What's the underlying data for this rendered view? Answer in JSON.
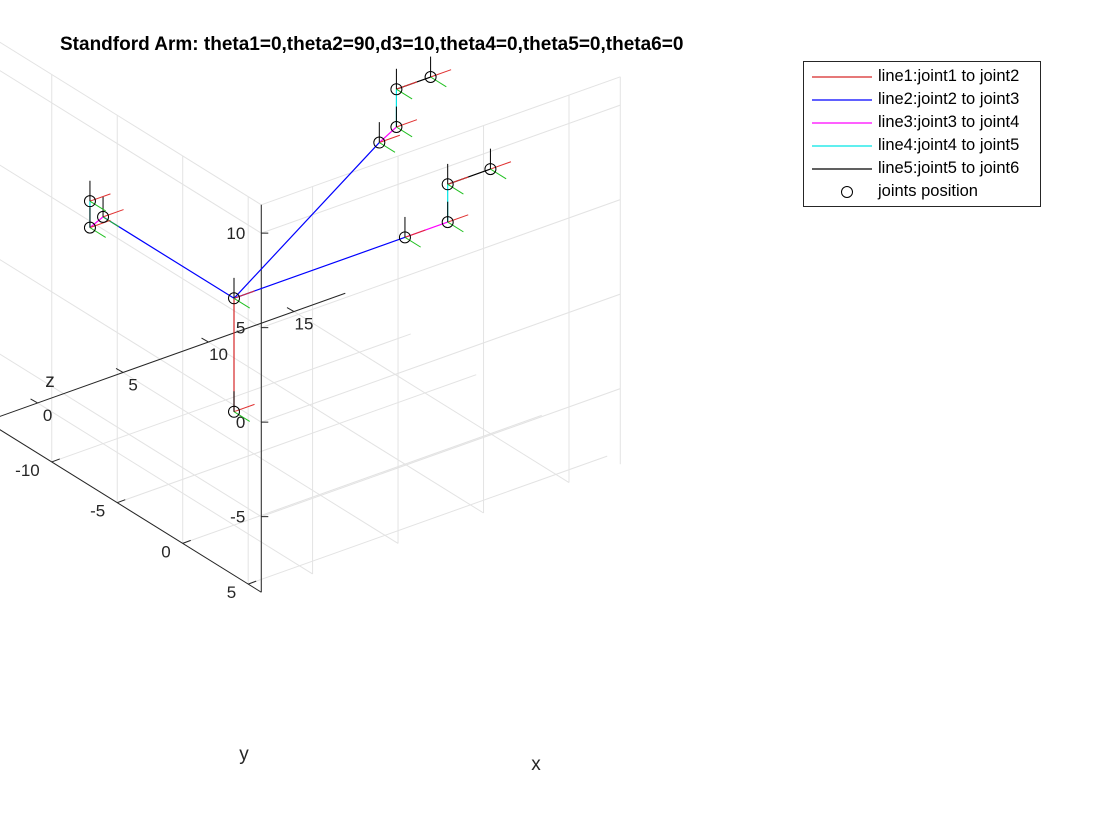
{
  "figure": {
    "title": "Standford Arm: theta1=0,theta2=90,d3=10,theta4=0,theta5=0,theta6=0"
  },
  "chart_data": {
    "type": "line3d",
    "title": "Standford Arm: theta1=0,theta2=90,d3=10,theta4=0,theta5=0,theta6=0",
    "xlabel": "x",
    "ylabel": "y",
    "zlabel": "z",
    "xlim": [
      -3,
      18
    ],
    "ylim": [
      -15,
      6
    ],
    "zlim": [
      -9,
      11.5
    ],
    "x_ticks": [
      0,
      5,
      10,
      15
    ],
    "y_ticks": [
      -10,
      -5,
      0,
      5
    ],
    "z_ticks": [
      -5,
      0,
      5,
      10
    ],
    "grid": true,
    "legend_location": "outside-top-right",
    "series": [
      {
        "name": "line1:joint1 to joint2",
        "color": "#d62728",
        "segments": [
          [
            [
              0,
              0,
              -3
            ],
            [
              0,
              0,
              3
            ]
          ]
        ]
      },
      {
        "name": "line2:joint2 to joint3",
        "color": "#0000ff",
        "segments": [
          [
            [
              0,
              0,
              3
            ],
            [
              0,
              -10,
              3
            ]
          ],
          [
            [
              0,
              0,
              3
            ],
            [
              10,
              0,
              3
            ]
          ],
          [
            [
              0,
              0,
              3
            ],
            [
              8.5,
              0,
              8.5
            ]
          ]
        ]
      },
      {
        "name": "line3:joint3 to joint4",
        "color": "#ff00ff",
        "segments": [
          [
            [
              0,
              -10,
              3
            ],
            [
              0,
              -11,
              2
            ]
          ],
          [
            [
              10,
              0,
              3
            ],
            [
              12.5,
              0,
              3
            ]
          ],
          [
            [
              8.5,
              0,
              8.5
            ],
            [
              9.5,
              0,
              9
            ]
          ]
        ]
      },
      {
        "name": "line4:joint4 to joint5",
        "color": "#00e5e5",
        "segments": [
          [
            [
              0,
              -11,
              2
            ],
            [
              0,
              -11,
              3.4
            ]
          ],
          [
            [
              12.5,
              0,
              3
            ],
            [
              12.5,
              0,
              5
            ]
          ],
          [
            [
              9.5,
              0,
              9
            ],
            [
              9.5,
              0,
              11
            ]
          ]
        ]
      },
      {
        "name": "line5:joint5 to joint6",
        "color": "#000000",
        "segments": [
          [
            [
              0,
              -11,
              3.4
            ],
            [
              0,
              -11,
              3.4
            ]
          ],
          [
            [
              12.5,
              0,
              5
            ],
            [
              15,
              0,
              5
            ]
          ],
          [
            [
              9.5,
              0,
              11
            ],
            [
              11.5,
              0,
              11
            ]
          ]
        ]
      }
    ],
    "joints": {
      "name": "joints position",
      "marker": "circle",
      "points": [
        [
          0,
          0,
          -3
        ],
        [
          0,
          0,
          3
        ],
        [
          0,
          -10,
          3
        ],
        [
          0,
          -11,
          2
        ],
        [
          0,
          -11,
          3.4
        ],
        [
          10,
          0,
          3
        ],
        [
          12.5,
          0,
          3
        ],
        [
          12.5,
          0,
          5
        ],
        [
          15,
          0,
          5
        ],
        [
          8.5,
          0,
          8.5
        ],
        [
          9.5,
          0,
          9
        ],
        [
          9.5,
          0,
          11
        ],
        [
          11.5,
          0,
          11
        ]
      ]
    }
  }
}
